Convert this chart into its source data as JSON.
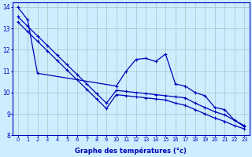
{
  "xlabel": "Graphe des températures (°c)",
  "xlim": [
    -0.5,
    23.5
  ],
  "ylim": [
    8,
    14.2
  ],
  "yticks": [
    8,
    9,
    10,
    11,
    12,
    13,
    14
  ],
  "xticks": [
    0,
    1,
    2,
    3,
    4,
    5,
    6,
    7,
    8,
    9,
    10,
    11,
    12,
    13,
    14,
    15,
    16,
    17,
    18,
    19,
    20,
    21,
    22,
    23
  ],
  "bg_color": "#cceeff",
  "grid_color": "#aacccc",
  "line_color": "#0000bb",
  "line1_x": [
    0,
    1,
    2,
    10,
    11,
    12,
    13,
    14,
    15,
    16,
    17,
    18,
    19,
    20,
    21,
    22,
    23
  ],
  "line1_y": [
    14.0,
    13.4,
    10.9,
    10.3,
    11.0,
    11.55,
    11.6,
    11.45,
    11.8,
    10.4,
    10.3,
    10.0,
    9.85,
    9.3,
    9.2,
    8.7,
    8.4
  ],
  "line2_x": [
    0,
    1,
    2,
    3,
    4,
    5,
    6,
    7,
    8,
    9,
    10,
    11,
    12,
    13,
    14,
    15,
    16,
    17,
    18,
    19,
    20,
    21,
    22,
    23
  ],
  "line2_y": [
    13.55,
    13.1,
    12.65,
    12.2,
    11.75,
    11.3,
    10.85,
    10.4,
    9.95,
    9.5,
    10.1,
    10.05,
    10.0,
    9.95,
    9.9,
    9.85,
    9.8,
    9.75,
    9.5,
    9.3,
    9.1,
    8.95,
    8.7,
    8.45
  ],
  "line3_x": [
    0,
    1,
    2,
    3,
    4,
    5,
    6,
    7,
    8,
    9,
    10,
    11,
    12,
    13,
    14,
    15,
    16,
    17,
    18,
    19,
    20,
    21,
    22,
    23
  ],
  "line3_y": [
    13.3,
    12.85,
    12.4,
    11.95,
    11.5,
    11.05,
    10.6,
    10.15,
    9.7,
    9.25,
    9.9,
    9.85,
    9.8,
    9.75,
    9.7,
    9.65,
    9.5,
    9.4,
    9.2,
    9.0,
    8.8,
    8.65,
    8.45,
    8.3
  ]
}
